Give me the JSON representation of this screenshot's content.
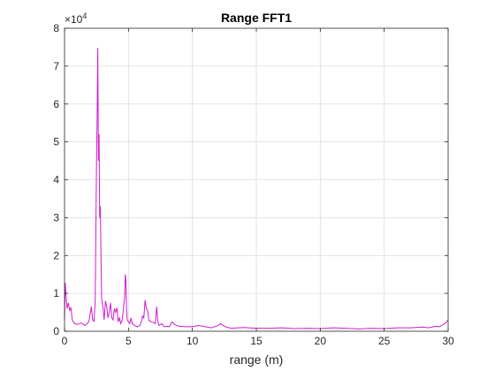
{
  "chart_data": {
    "type": "line",
    "title": "Range FFT1",
    "xlabel": "range (m)",
    "ylabel": "",
    "xlim": [
      0,
      30
    ],
    "ylim": [
      0,
      80000
    ],
    "x_ticks": [
      0,
      5,
      10,
      15,
      20,
      25,
      30
    ],
    "y_ticks": [
      0,
      10000,
      20000,
      30000,
      40000,
      50000,
      60000,
      70000,
      80000
    ],
    "y_tick_labels": [
      "0",
      "1",
      "2",
      "3",
      "4",
      "5",
      "6",
      "7",
      "8"
    ],
    "y_exponent_base": "×10",
    "y_exponent_power": "4",
    "grid": true,
    "line_color": "#d11ad1",
    "series": [
      {
        "x": [
          0.0,
          0.05,
          0.12,
          0.2,
          0.3,
          0.4,
          0.5,
          0.6,
          0.8,
          1.0,
          1.3,
          1.6,
          1.9,
          2.1,
          2.2,
          2.3,
          2.4,
          2.5,
          2.55,
          2.6,
          2.65,
          2.7,
          2.75,
          2.8,
          2.85,
          2.9,
          3.0,
          3.1,
          3.2,
          3.3,
          3.4,
          3.5,
          3.6,
          3.7,
          3.8,
          3.9,
          4.0,
          4.1,
          4.2,
          4.3,
          4.4,
          4.5,
          4.6,
          4.7,
          4.75,
          4.8,
          4.85,
          4.9,
          5.0,
          5.1,
          5.2,
          5.3,
          5.5,
          5.7,
          5.9,
          6.0,
          6.1,
          6.2,
          6.3,
          6.4,
          6.5,
          6.6,
          6.8,
          7.0,
          7.1,
          7.2,
          7.3,
          7.4,
          7.6,
          7.8,
          8.0,
          8.2,
          8.4,
          8.5,
          8.6,
          8.8,
          9.0,
          9.5,
          10.0,
          10.5,
          11.0,
          11.5,
          12.0,
          12.2,
          12.5,
          13.0,
          14.0,
          15.0,
          16.0,
          17.0,
          18.0,
          19.0,
          20.0,
          21.0,
          22.0,
          23.0,
          24.0,
          25.0,
          26.0,
          27.0,
          28.0,
          28.5,
          29.0,
          29.3,
          29.6,
          29.8,
          30.0
        ],
        "y": [
          3000,
          12800,
          9500,
          6000,
          7500,
          5500,
          6300,
          3000,
          2000,
          1800,
          2200,
          1500,
          2500,
          6500,
          3000,
          2600,
          8000,
          44000,
          57000,
          74800,
          45000,
          52000,
          30000,
          33000,
          20000,
          8500,
          6500,
          3000,
          8000,
          6500,
          3500,
          5000,
          7500,
          3500,
          3000,
          6000,
          5000,
          6200,
          2500,
          3500,
          2000,
          2800,
          5800,
          9000,
          15000,
          13500,
          6000,
          3000,
          2500,
          2000,
          3500,
          2000,
          1500,
          1200,
          1500,
          2500,
          4000,
          3500,
          8200,
          6000,
          5500,
          2800,
          2500,
          2200,
          2000,
          6500,
          2500,
          1500,
          2000,
          1200,
          1300,
          1200,
          2500,
          2200,
          1800,
          1500,
          1300,
          1200,
          1200,
          1500,
          1200,
          900,
          1500,
          2000,
          1300,
          800,
          1000,
          800,
          800,
          900,
          700,
          800,
          700,
          900,
          800,
          600,
          800,
          700,
          900,
          900,
          1100,
          900,
          1300,
          1200,
          1700,
          2200,
          3000
        ]
      }
    ]
  }
}
